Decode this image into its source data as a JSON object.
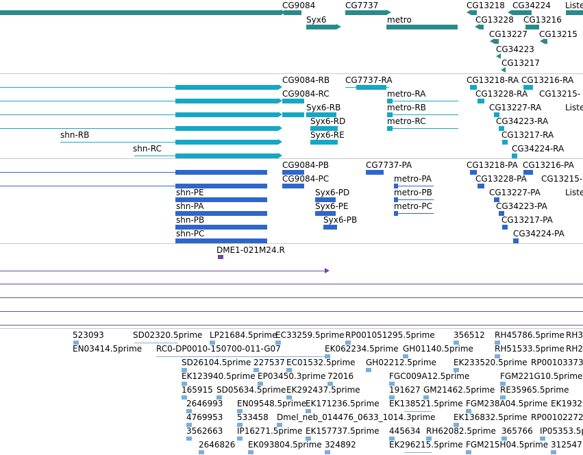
{
  "colors": {
    "gene": "#2a8a8a",
    "transcript": "#16a7c5",
    "cds": "#2f66cc",
    "clone": "#6b4a99",
    "est": "#7aaedb"
  },
  "gene_track": {
    "labels": [
      "CG9084",
      "CG7737",
      "CG13218",
      "CG34224",
      "Liste",
      "Syx6",
      "metro",
      "CG13228",
      "CG13216",
      "CG13227",
      "CG13215",
      "CG34223",
      "CG13217"
    ]
  },
  "transcript_track": {
    "labels": [
      "CG9084-RB",
      "CG7737-RA",
      "CG13218-RA",
      "CG13216-RA",
      "CG9084-RC",
      "metro-RA",
      "CG13228-RA",
      "CG13215-",
      "Syx6-RB",
      "metro-RB",
      "CG13227-RA",
      "Liste",
      "Syx6-RD",
      "metro-RC",
      "CG34223-RA",
      "shn-RB",
      "Syx6-RE",
      "CG13217-RA",
      "shn-RC",
      "CG34224-RA"
    ]
  },
  "cds_track": {
    "labels": [
      "CG9084-PB",
      "CG7737-PA",
      "CG13218-PA",
      "CG13216-PA",
      "CG9084-PC",
      "metro-PA",
      "CG13228-PA",
      "CG13215-",
      "shn-PE",
      "Syx6-PD",
      "metro-PB",
      "CG13227-PA",
      "Liste",
      "shn-PA",
      "Syx6-PE",
      "metro-PC",
      "CG34223-PA",
      "shn-PB",
      "Syx6-PB",
      "CG13217-PA",
      "shn-PC",
      "CG34224-PA"
    ]
  },
  "clone_track": {
    "labels": [
      "DME1-021M24.R"
    ]
  },
  "est_track": {
    "labels": [
      "523093",
      "SD02320.5prime",
      "LP21684.5prime",
      "EC33259.5prime",
      "RP001051295.5prime",
      "356512",
      "RH45786.5prime",
      "RH3",
      "EN03414.5prime",
      "RC0-DP0010-150700-011-G07",
      "EK062234.5prime",
      "GH01140.5prime",
      "RH51533.5prime",
      "RH2",
      "SD26104.5prime",
      "227537",
      "EC01532.5prime",
      "GH02212.5prime",
      "EK233520.5prime",
      "RP00103373",
      "EK123940.5prime",
      "EP03450.3prime",
      "72016",
      "FGC009A12.5prime",
      "FGM221G10.5prime",
      "165915",
      "SD05634.5prime",
      "EK292437.5prime",
      "191627",
      "GM21462.5prime",
      "RE35965.5prime",
      "2646993",
      "EN09548.5prime",
      "EK171236.5prime",
      "EK138521.5prime",
      "FGM238A04.5prime",
      "EK1932",
      "4769953",
      "533458",
      "Dmel_neb_014476_0633_1014.3prime",
      "EK136832.5prime",
      "RP00102272",
      "3562663",
      "IP16271.5prime",
      "EK157737.5prime",
      "445634",
      "RH62082.5prime",
      "365766",
      "IP05353.5p",
      "2646826",
      "EK093804.5prime",
      "324892",
      "EK296215.5prime",
      "FGM215H04.5prime",
      "312547"
    ]
  }
}
